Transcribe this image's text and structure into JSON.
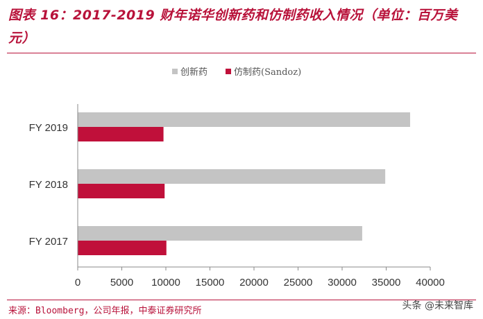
{
  "header": {
    "title": "图表 16：2017-2019 财年诺华创新药和仿制药收入情况（单位：百万美元）"
  },
  "footer": {
    "source": "来源：Bloomberg，公司年报，中泰证券研究所",
    "watermark": "头条 @未来智库"
  },
  "colors": {
    "accent": "#b8123a",
    "series_innovative": "#c4c4c4",
    "series_generic": "#c0103a"
  },
  "chart_data": {
    "type": "bar",
    "orientation": "horizontal",
    "categories": [
      "FY 2019",
      "FY 2018",
      "FY 2017"
    ],
    "series": [
      {
        "name": "创新药",
        "values": [
          37714,
          34892,
          32278
        ]
      },
      {
        "name": "仿制药(Sandoz)",
        "values": [
          9731,
          9859,
          10060
        ]
      }
    ],
    "xlim": [
      0,
      40000
    ],
    "xticks": [
      "0",
      "5000",
      "10000",
      "15000",
      "20000",
      "25000",
      "30000",
      "35000",
      "40000"
    ],
    "legend": "top",
    "grid": false
  }
}
